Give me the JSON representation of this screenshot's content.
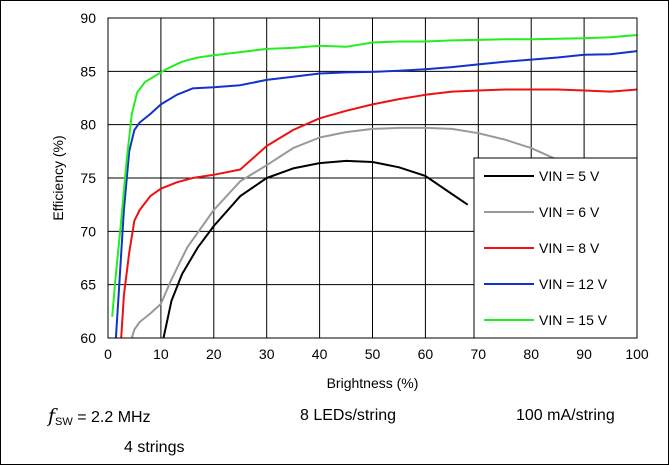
{
  "chart_data": {
    "type": "line",
    "title": "",
    "xlabel": "Brightness (%)",
    "ylabel": "Efficiency (%)",
    "xlim": [
      0,
      100
    ],
    "ylim": [
      60,
      90
    ],
    "xticks": [
      0,
      10,
      20,
      30,
      40,
      50,
      60,
      70,
      80,
      90,
      100
    ],
    "yticks": [
      60,
      65,
      70,
      75,
      80,
      85,
      90
    ],
    "grid": true,
    "legend_position": "bottom-right",
    "series": [
      {
        "name": "VIN = 5 V",
        "color": "#000000",
        "x": [
          10.5,
          12,
          14,
          17,
          20,
          25,
          30,
          35,
          40,
          45,
          50,
          55,
          60,
          65,
          68
        ],
        "y": [
          60,
          63.5,
          66,
          68.5,
          70.5,
          73.3,
          75,
          75.9,
          76.4,
          76.6,
          76.5,
          76,
          75.2,
          73.5,
          72.5
        ]
      },
      {
        "name": "VIN = 6 V",
        "color": "#999999",
        "x": [
          4.5,
          5,
          6,
          8,
          10,
          12,
          15,
          20,
          25,
          30,
          35,
          40,
          45,
          50,
          55,
          60,
          65,
          70,
          75,
          80,
          85
        ],
        "y": [
          60,
          60.8,
          61.5,
          62.3,
          63.2,
          65.5,
          68.5,
          72,
          74.7,
          76.2,
          77.8,
          78.8,
          79.3,
          79.6,
          79.7,
          79.7,
          79.6,
          79.2,
          78.6,
          77.8,
          76.7
        ]
      },
      {
        "name": "VIN = 8 V",
        "color": "#ee1111",
        "x": [
          2.5,
          3,
          4,
          5,
          6,
          8,
          10,
          13,
          16,
          20,
          25,
          30,
          35,
          40,
          45,
          50,
          55,
          60,
          65,
          70,
          75,
          80,
          85,
          90,
          95,
          100
        ],
        "y": [
          60,
          64,
          68,
          71,
          72,
          73.3,
          74,
          74.6,
          75,
          75.3,
          75.8,
          78,
          79.5,
          80.6,
          81.3,
          81.9,
          82.4,
          82.8,
          83.1,
          83.2,
          83.3,
          83.3,
          83.3,
          83.2,
          83.1,
          83.3
        ]
      },
      {
        "name": "VIN = 12 V",
        "color": "#1133cc",
        "x": [
          1.5,
          2,
          3,
          4,
          5,
          6,
          8,
          10,
          13,
          16,
          20,
          25,
          30,
          35,
          40,
          45,
          50,
          55,
          60,
          65,
          70,
          75,
          80,
          85,
          90,
          95,
          100
        ],
        "y": [
          60,
          64,
          72,
          77.5,
          79.5,
          80.2,
          81,
          81.9,
          82.8,
          83.4,
          83.5,
          83.7,
          84.2,
          84.5,
          84.8,
          84.9,
          84.95,
          85.05,
          85.2,
          85.4,
          85.65,
          85.9,
          86.1,
          86.3,
          86.55,
          86.6,
          86.9
        ]
      },
      {
        "name": "VIN = 15 V",
        "color": "#22ee22",
        "x": [
          0.8,
          1.5,
          2.5,
          3.5,
          4.5,
          5.5,
          7,
          9,
          11,
          14,
          17,
          20,
          25,
          30,
          35,
          40,
          45,
          50,
          55,
          60,
          65,
          70,
          75,
          80,
          85,
          90,
          95,
          100
        ],
        "y": [
          62,
          66,
          71,
          76.5,
          81,
          83,
          84,
          84.6,
          85.2,
          85.9,
          86.3,
          86.5,
          86.8,
          87.1,
          87.2,
          87.4,
          87.3,
          87.7,
          87.8,
          87.8,
          87.9,
          87.95,
          88,
          88,
          88.05,
          88.1,
          88.2,
          88.4
        ]
      }
    ]
  },
  "notes": {
    "fsw_symbol": "f",
    "fsw_subscript": "SW",
    "fsw_value": " = 2.2 MHz",
    "strings": "4 strings",
    "leds": "8 LEDs/string",
    "current": "100 mA/string"
  }
}
